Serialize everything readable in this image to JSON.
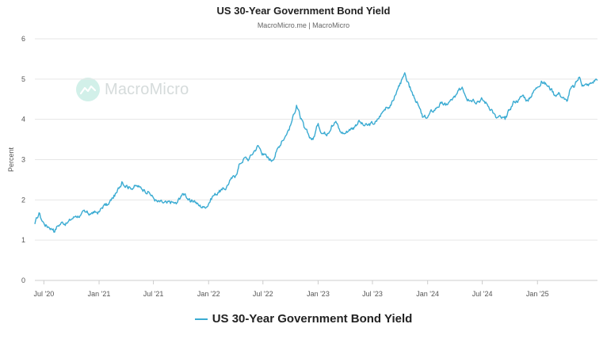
{
  "title": "US 30-Year Government Bond Yield",
  "subtitle": "MacroMicro.me | MacroMicro",
  "watermark": "MacroMicro",
  "colors": {
    "line": "#3aabd2",
    "grid": "#e6e6e6",
    "axis": "#cccccc",
    "text": "#555555"
  },
  "chart_data": {
    "type": "line",
    "title": "US 30-Year Government Bond Yield",
    "subtitle": "MacroMicro.me | MacroMicro",
    "ylabel": "Percent",
    "xlabel": "",
    "ylim": [
      0,
      6
    ],
    "yticks": [
      0,
      1,
      2,
      3,
      4,
      5,
      6
    ],
    "xlim": [
      "2020-06-01",
      "2025-07-20"
    ],
    "xticks": [
      {
        "date": "2020-07-01",
        "label": "Jul '20"
      },
      {
        "date": "2021-01-01",
        "label": "Jan '21"
      },
      {
        "date": "2021-07-01",
        "label": "Jul '21"
      },
      {
        "date": "2022-01-01",
        "label": "Jan '22"
      },
      {
        "date": "2022-07-01",
        "label": "Jul '22"
      },
      {
        "date": "2023-01-01",
        "label": "Jan '23"
      },
      {
        "date": "2023-07-01",
        "label": "Jul '23"
      },
      {
        "date": "2024-01-01",
        "label": "Jan '24"
      },
      {
        "date": "2024-07-01",
        "label": "Jul '24"
      },
      {
        "date": "2025-01-01",
        "label": "Jan '25"
      }
    ],
    "grid": true,
    "legend": "bottom-center",
    "series": [
      {
        "name": "US 30-Year Government Bond Yield",
        "x": [
          "2020-06-01",
          "2020-06-08",
          "2020-06-15",
          "2020-06-22",
          "2020-07-01",
          "2020-07-15",
          "2020-08-01",
          "2020-08-06",
          "2020-08-15",
          "2020-09-01",
          "2020-09-15",
          "2020-10-01",
          "2020-10-15",
          "2020-11-01",
          "2020-11-15",
          "2020-12-01",
          "2020-12-15",
          "2021-01-01",
          "2021-01-15",
          "2021-02-01",
          "2021-02-15",
          "2021-03-01",
          "2021-03-18",
          "2021-04-01",
          "2021-04-15",
          "2021-05-01",
          "2021-05-15",
          "2021-06-01",
          "2021-06-15",
          "2021-07-01",
          "2021-07-15",
          "2021-08-01",
          "2021-08-15",
          "2021-09-01",
          "2021-09-15",
          "2021-10-01",
          "2021-10-15",
          "2021-11-01",
          "2021-11-15",
          "2021-12-01",
          "2021-12-15",
          "2022-01-01",
          "2022-01-15",
          "2022-02-01",
          "2022-02-15",
          "2022-03-01",
          "2022-03-15",
          "2022-04-01",
          "2022-04-15",
          "2022-05-01",
          "2022-05-15",
          "2022-06-01",
          "2022-06-15",
          "2022-07-01",
          "2022-07-15",
          "2022-08-01",
          "2022-08-15",
          "2022-09-01",
          "2022-09-15",
          "2022-10-01",
          "2022-10-21",
          "2022-11-01",
          "2022-11-15",
          "2022-12-01",
          "2022-12-15",
          "2023-01-01",
          "2023-01-15",
          "2023-02-01",
          "2023-02-15",
          "2023-03-01",
          "2023-03-15",
          "2023-04-01",
          "2023-04-15",
          "2023-05-01",
          "2023-05-15",
          "2023-06-01",
          "2023-06-15",
          "2023-07-01",
          "2023-07-15",
          "2023-08-01",
          "2023-08-15",
          "2023-09-01",
          "2023-09-15",
          "2023-10-01",
          "2023-10-19",
          "2023-11-01",
          "2023-11-15",
          "2023-12-01",
          "2023-12-15",
          "2024-01-01",
          "2024-01-15",
          "2024-02-01",
          "2024-02-15",
          "2024-03-01",
          "2024-03-15",
          "2024-04-01",
          "2024-04-25",
          "2024-05-15",
          "2024-06-01",
          "2024-06-15",
          "2024-07-01",
          "2024-07-15",
          "2024-08-01",
          "2024-08-15",
          "2024-09-01",
          "2024-09-15",
          "2024-10-01",
          "2024-10-15",
          "2024-11-01",
          "2024-11-15",
          "2024-12-01",
          "2024-12-15",
          "2025-01-01",
          "2025-01-14",
          "2025-02-01",
          "2025-02-15",
          "2025-03-01",
          "2025-03-15",
          "2025-04-01",
          "2025-04-09",
          "2025-04-20",
          "2025-05-01",
          "2025-05-21",
          "2025-06-01",
          "2025-06-15",
          "2025-07-01",
          "2025-07-15",
          "2025-07-20"
        ],
        "values": [
          1.4,
          1.55,
          1.68,
          1.52,
          1.42,
          1.33,
          1.28,
          1.2,
          1.35,
          1.45,
          1.42,
          1.52,
          1.6,
          1.62,
          1.7,
          1.65,
          1.68,
          1.7,
          1.85,
          1.88,
          2.05,
          2.18,
          2.45,
          2.35,
          2.3,
          2.35,
          2.32,
          2.25,
          2.2,
          2.05,
          1.95,
          1.93,
          1.92,
          1.95,
          1.9,
          2.1,
          2.15,
          1.95,
          1.98,
          1.85,
          1.82,
          1.9,
          2.1,
          2.18,
          2.25,
          2.3,
          2.5,
          2.6,
          2.9,
          3.05,
          3.0,
          3.2,
          3.35,
          3.15,
          3.05,
          2.98,
          3.2,
          3.45,
          3.6,
          3.85,
          4.35,
          4.1,
          3.8,
          3.6,
          3.5,
          3.9,
          3.65,
          3.65,
          3.85,
          3.95,
          3.7,
          3.65,
          3.75,
          3.8,
          3.95,
          3.85,
          3.85,
          3.9,
          3.95,
          4.15,
          4.3,
          4.35,
          4.6,
          4.9,
          5.1,
          4.8,
          4.6,
          4.35,
          4.05,
          4.05,
          4.2,
          4.3,
          4.4,
          4.35,
          4.45,
          4.55,
          4.8,
          4.5,
          4.5,
          4.45,
          4.5,
          4.4,
          4.25,
          4.05,
          4.05,
          4.0,
          4.25,
          4.45,
          4.5,
          4.6,
          4.45,
          4.65,
          4.8,
          4.95,
          4.85,
          4.75,
          4.6,
          4.65,
          4.5,
          4.45,
          4.75,
          4.8,
          5.05,
          4.85,
          4.85,
          4.9,
          5.0,
          4.97
        ]
      }
    ]
  }
}
